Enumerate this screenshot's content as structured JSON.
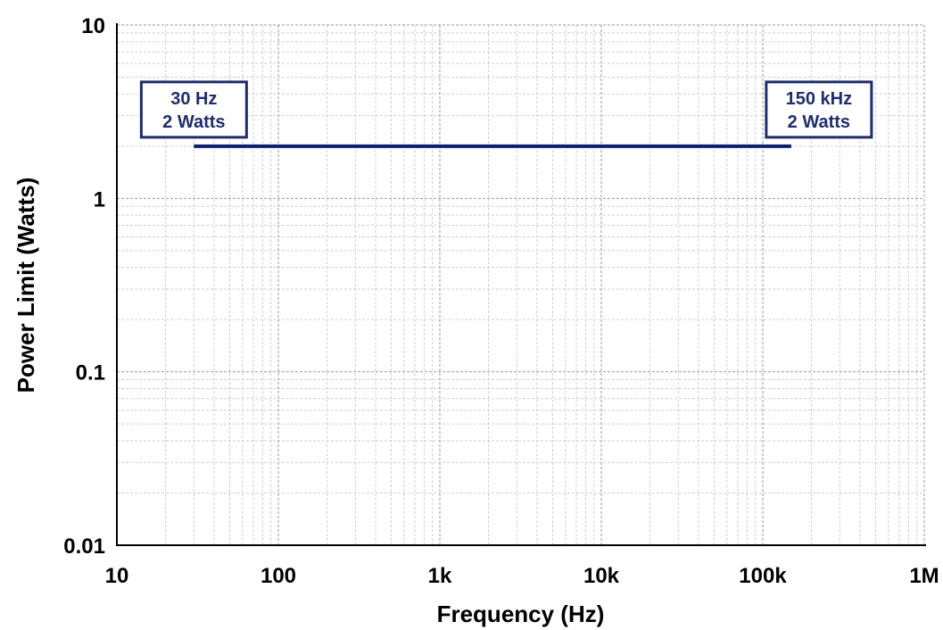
{
  "chart_data": {
    "type": "line",
    "title": "",
    "xlabel": "Frequency (Hz)",
    "ylabel": "Power Limit (Watts)",
    "x_scale": "log",
    "y_scale": "log",
    "xlim": [
      10,
      1000000
    ],
    "ylim": [
      0.01,
      10
    ],
    "grid": true,
    "x_ticks": [
      {
        "value": 10,
        "label": "10"
      },
      {
        "value": 100,
        "label": "100"
      },
      {
        "value": 1000,
        "label": "1k"
      },
      {
        "value": 10000,
        "label": "10k"
      },
      {
        "value": 100000,
        "label": "100k"
      },
      {
        "value": 1000000,
        "label": "1M"
      }
    ],
    "y_ticks": [
      {
        "value": 10,
        "label": "10"
      },
      {
        "value": 1,
        "label": "1"
      },
      {
        "value": 0.1,
        "label": "0.1"
      },
      {
        "value": 0.01,
        "label": "0.01"
      }
    ],
    "series": [
      {
        "color": "#0b1f6e",
        "x": [
          30,
          150000
        ],
        "y": [
          2,
          2
        ]
      }
    ],
    "annotations": [
      {
        "lines": [
          "30 Hz",
          "2 Watts"
        ],
        "x": 30,
        "y": 2,
        "side": "start"
      },
      {
        "lines": [
          "150 kHz",
          "2 Watts"
        ],
        "x": 150000,
        "y": 2,
        "side": "end"
      }
    ],
    "colors": {
      "line": "#0b1f6e",
      "callout_border": "#1f2d6b",
      "callout_text": "#1f2d6b",
      "major_grid": "#9a9a9a",
      "minor_grid": "#cfcfcf",
      "axis": "#000000"
    }
  }
}
